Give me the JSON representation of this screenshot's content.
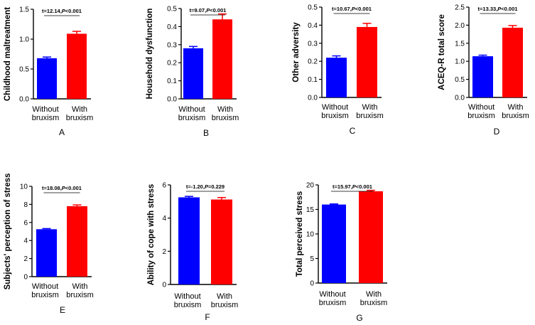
{
  "panel_letters": [
    "A",
    "B",
    "C",
    "D",
    "E",
    "F",
    "G"
  ],
  "colors": {
    "without": "#0000FF",
    "with": "#FF0000",
    "axis": "#000000"
  },
  "chart_data": [
    {
      "type": "bar",
      "panel": "A",
      "ylabel": "Childhood maltreatment",
      "categories": [
        [
          "Without",
          "bruxism"
        ],
        [
          "With",
          "bruxism"
        ]
      ],
      "values": [
        0.68,
        1.09
      ],
      "errors": [
        0.02,
        0.04
      ],
      "ylim": [
        0,
        1.5
      ],
      "yticks": [
        0.0,
        0.5,
        1.0,
        1.5
      ],
      "ytick_labels": [
        "0.0",
        "0.5",
        "1.0",
        "1.5"
      ],
      "stat_prefix": "t=12.14,",
      "stat_p": "P",
      "stat_suffix": "<0.001"
    },
    {
      "type": "bar",
      "panel": "B",
      "ylabel": "Household dysfunction",
      "categories": [
        [
          "Without",
          "bruxism"
        ],
        [
          "With",
          "bruxism"
        ]
      ],
      "values": [
        0.28,
        0.44
      ],
      "errors": [
        0.01,
        0.03
      ],
      "ylim": [
        0,
        0.5
      ],
      "yticks": [
        0.0,
        0.1,
        0.2,
        0.3,
        0.4,
        0.5
      ],
      "ytick_labels": [
        "0.0",
        "0.1",
        "0.2",
        "0.3",
        "0.4",
        "0.5"
      ],
      "stat_prefix": "t=9.07,",
      "stat_p": "P",
      "stat_suffix": "<0.001"
    },
    {
      "type": "bar",
      "panel": "C",
      "ylabel": "Other adversity",
      "categories": [
        [
          "Without",
          "bruxism"
        ],
        [
          "With",
          "bruxism"
        ]
      ],
      "values": [
        0.22,
        0.39
      ],
      "errors": [
        0.01,
        0.02
      ],
      "ylim": [
        0,
        0.5
      ],
      "yticks": [
        0.0,
        0.1,
        0.2,
        0.3,
        0.4,
        0.5
      ],
      "ytick_labels": [
        "0.0",
        "0.1",
        "0.2",
        "0.3",
        "0.4",
        "0.5"
      ],
      "stat_prefix": "t=10.67,",
      "stat_p": "P",
      "stat_suffix": "<0.001"
    },
    {
      "type": "bar",
      "panel": "D",
      "ylabel": "ACEQ-R total score",
      "categories": [
        [
          "Without",
          "bruxism"
        ],
        [
          "With",
          "bruxism"
        ]
      ],
      "values": [
        1.14,
        1.93
      ],
      "errors": [
        0.03,
        0.06
      ],
      "ylim": [
        0,
        2.5
      ],
      "yticks": [
        0.0,
        0.5,
        1.0,
        1.5,
        2.0,
        2.5
      ],
      "ytick_labels": [
        "0.0",
        "0.5",
        "1.0",
        "1.5",
        "2.0",
        "2.5"
      ],
      "stat_prefix": "t=13.33,",
      "stat_p": "P",
      "stat_suffix": "<0.001"
    },
    {
      "type": "bar",
      "panel": "E",
      "ylabel": "Subjects' perception of stress",
      "categories": [
        [
          "Without",
          "bruxism"
        ],
        [
          "With",
          "bruxism"
        ]
      ],
      "values": [
        5.25,
        7.8
      ],
      "errors": [
        0.07,
        0.14
      ],
      "ylim": [
        0,
        10
      ],
      "yticks": [
        0,
        2,
        4,
        6,
        8,
        10
      ],
      "ytick_labels": [
        "0",
        "2",
        "4",
        "6",
        "8",
        "10"
      ],
      "stat_prefix": "t=18.08,",
      "stat_p": "P",
      "stat_suffix": "<0.001"
    },
    {
      "type": "bar",
      "panel": "F",
      "ylabel": "Ability of cope with stress",
      "categories": [
        [
          "Without",
          "bruxism"
        ],
        [
          "With",
          "bruxism"
        ]
      ],
      "values": [
        5.25,
        5.12
      ],
      "errors": [
        0.06,
        0.12
      ],
      "ylim": [
        0,
        6
      ],
      "yticks": [
        0,
        2,
        4,
        6
      ],
      "ytick_labels": [
        "0",
        "2",
        "4",
        "6"
      ],
      "stat_prefix": "t=-1.20,",
      "stat_p": "P",
      "stat_suffix": "=0.229"
    },
    {
      "type": "bar",
      "panel": "G",
      "ylabel": "Total perceived stress",
      "categories": [
        [
          "Without",
          "bruxism"
        ],
        [
          "With",
          "bruxism"
        ]
      ],
      "values": [
        16.0,
        18.7
      ],
      "errors": [
        0.12,
        0.2
      ],
      "ylim": [
        0,
        20
      ],
      "yticks": [
        0,
        5,
        10,
        15,
        20
      ],
      "ytick_labels": [
        "0",
        "5",
        "10",
        "15",
        "20"
      ],
      "stat_prefix": "t=15.97,",
      "stat_p": "P",
      "stat_suffix": "<0.001"
    }
  ]
}
